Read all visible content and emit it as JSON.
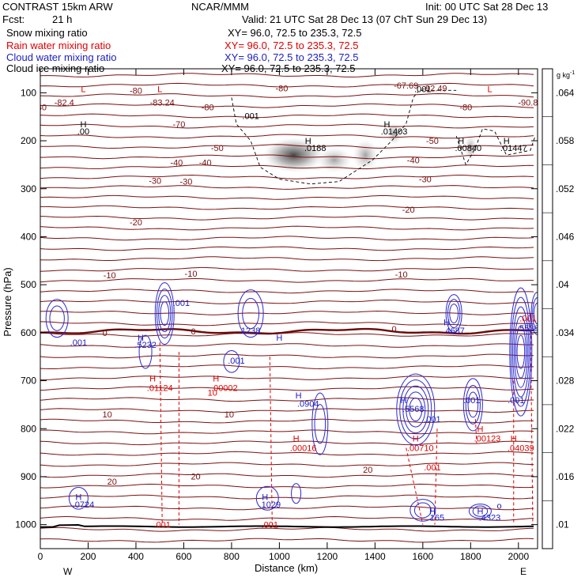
{
  "header": {
    "model": "CONTRAST 15km ARW",
    "org": "NCAR/MMM",
    "init": "Init: 00 UTC Sat 28 Dec 13",
    "fcst_label": "Fcst:",
    "fcst_value": "21 h",
    "valid": "Valid: 21 UTC Sat 28 Dec 13 (07 ChT Sun 29 Dec 13)"
  },
  "fields": [
    {
      "name": "Snow mixing ratio",
      "xy": "XY=  96.0, 72.5 to 235.3, 72.5",
      "color": "#000000"
    },
    {
      "name": "Rain water mixing ratio",
      "xy": "XY=  96.0, 72.5 to 235.3, 72.5",
      "color": "#e00000"
    },
    {
      "name": "Cloud water mixing ratio",
      "xy": "XY=  96.0, 72.5 to 235.3, 72.5",
      "color": "#2020c0"
    },
    {
      "name": "Cloud ice mixing ratio",
      "xy": "XY=  96.0, 72.5 to 235.3, 72.5",
      "color": "#000000"
    }
  ],
  "colorbar": {
    "unit": "g kg",
    "unit_exp": "-1",
    "ticks": [
      ".064",
      ".058",
      ".052",
      ".046",
      ".04",
      ".034",
      ".028",
      ".022",
      ".016",
      ".01"
    ],
    "colors": [
      "#404040",
      "#585858",
      "#6e6e6e",
      "#848484",
      "#9a9a9a",
      "#b0b0b0",
      "#c4c4c4",
      "#d6d6d6",
      "#e6e6e6",
      "#f2f2f2"
    ]
  },
  "chart_data": {
    "type": "contour",
    "xlabel": "Distance (km)",
    "ylabel": "Pressure (hPa)",
    "xlim": [
      0,
      2080
    ],
    "ylim": [
      1050,
      50
    ],
    "xticks": [
      0,
      200,
      400,
      600,
      800,
      1000,
      1200,
      1400,
      1600,
      1800,
      2000
    ],
    "yticks": [
      100,
      200,
      300,
      400,
      500,
      600,
      700,
      800,
      900,
      1000
    ],
    "x_end_labels": {
      "left": "W",
      "right": "E"
    },
    "temperature_labels": [
      {
        "x": 100,
        "p": 120,
        "text": "-82.4"
      },
      {
        "x": 0,
        "p": 130,
        "text": "-80"
      },
      {
        "x": 400,
        "p": 95,
        "text": "-80"
      },
      {
        "x": 510,
        "p": 120,
        "text": "-83.24"
      },
      {
        "x": 700,
        "p": 130,
        "text": "-80"
      },
      {
        "x": 1010,
        "p": 90,
        "text": "-80"
      },
      {
        "x": 1530,
        "p": 85,
        "text": "-67.69"
      },
      {
        "x": 1650,
        "p": 90,
        "text": "-92.49"
      },
      {
        "x": 1780,
        "p": 130,
        "text": "-80"
      },
      {
        "x": 2040,
        "p": 120,
        "text": "-90.8"
      },
      {
        "x": 580,
        "p": 165,
        "text": "-70"
      },
      {
        "x": 740,
        "p": 215,
        "text": "-50"
      },
      {
        "x": 1640,
        "p": 200,
        "text": "-50"
      },
      {
        "x": 570,
        "p": 245,
        "text": "-40"
      },
      {
        "x": 690,
        "p": 245,
        "text": "-40"
      },
      {
        "x": 1560,
        "p": 240,
        "text": "-40"
      },
      {
        "x": 480,
        "p": 283,
        "text": "-30"
      },
      {
        "x": 610,
        "p": 285,
        "text": "-30"
      },
      {
        "x": 1610,
        "p": 280,
        "text": "-30"
      },
      {
        "x": 400,
        "p": 370,
        "text": "-20"
      },
      {
        "x": 1540,
        "p": 343,
        "text": "-20"
      },
      {
        "x": 290,
        "p": 480,
        "text": "-10"
      },
      {
        "x": 630,
        "p": 477,
        "text": "-10"
      },
      {
        "x": 1510,
        "p": 478,
        "text": "-10"
      },
      {
        "x": 270,
        "p": 600,
        "text": "0"
      },
      {
        "x": 640,
        "p": 597,
        "text": "0"
      },
      {
        "x": 1480,
        "p": 592,
        "text": "0"
      },
      {
        "x": 280,
        "p": 770,
        "text": "10"
      },
      {
        "x": 790,
        "p": 770,
        "text": "10"
      },
      {
        "x": 300,
        "p": 910,
        "text": "20"
      },
      {
        "x": 650,
        "p": 899,
        "text": "20"
      },
      {
        "x": 1370,
        "p": 885,
        "text": "20"
      }
    ],
    "snow_ice_labels": [
      {
        "x": 180,
        "p": 165,
        "text": "H",
        "color": "#000000"
      },
      {
        "x": 180,
        "p": 180,
        "text": ".00",
        "color": "#000000"
      },
      {
        "x": 880,
        "p": 148,
        "text": ".001",
        "color": "#000000"
      },
      {
        "x": 1120,
        "p": 200,
        "text": "H",
        "color": "#000000"
      },
      {
        "x": 1150,
        "p": 215,
        "text": ".0188",
        "color": "#000000"
      },
      {
        "x": 1450,
        "p": 165,
        "text": "H",
        "color": "#000000"
      },
      {
        "x": 1480,
        "p": 180,
        "text": ".01403",
        "color": "#000000"
      },
      {
        "x": 1760,
        "p": 200,
        "text": "H",
        "color": "#000000"
      },
      {
        "x": 1790,
        "p": 215,
        "text": ".00840",
        "color": "#000000"
      },
      {
        "x": 1950,
        "p": 200,
        "text": "H",
        "color": "#000000"
      },
      {
        "x": 1980,
        "p": 215,
        "text": ".01447",
        "color": "#000000"
      },
      {
        "x": 1600,
        "p": 92,
        "text": ".001",
        "color": "#000000"
      },
      {
        "x": 180,
        "p": 92,
        "text": "L",
        "color": "#e00000"
      },
      {
        "x": 500,
        "p": 92,
        "text": "L",
        "color": "#e00000"
      },
      {
        "x": 1880,
        "p": 92,
        "text": "L",
        "color": "#e00000"
      }
    ],
    "rain_labels": [
      {
        "x": 470,
        "p": 695,
        "text": "H"
      },
      {
        "x": 500,
        "p": 715,
        "text": ".01124"
      },
      {
        "x": 735,
        "p": 695,
        "text": "H"
      },
      {
        "x": 770,
        "p": 715,
        "text": ".00002"
      },
      {
        "x": 1070,
        "p": 820,
        "text": "H"
      },
      {
        "x": 1100,
        "p": 840,
        "text": ".00016"
      },
      {
        "x": 1570,
        "p": 820,
        "text": "H"
      },
      {
        "x": 1590,
        "p": 840,
        "text": ".00710"
      },
      {
        "x": 1840,
        "p": 800,
        "text": "H"
      },
      {
        "x": 1870,
        "p": 820,
        "text": ".00123"
      },
      {
        "x": 1980,
        "p": 820,
        "text": "H"
      },
      {
        "x": 2010,
        "p": 840,
        "text": ".04039"
      },
      {
        "x": 1640,
        "p": 880,
        "text": ".001"
      },
      {
        "x": 510,
        "p": 1000,
        "text": ".001"
      },
      {
        "x": 960,
        "p": 1000,
        "text": ".001"
      },
      {
        "x": 2040,
        "p": 570,
        "text": ".001"
      },
      {
        "x": 720,
        "p": 725,
        "text": "10"
      }
    ],
    "cloud_water_labels": [
      {
        "x": 420,
        "p": 610,
        "text": "H"
      },
      {
        "x": 440,
        "p": 625,
        "text": ".5232"
      },
      {
        "x": 1000,
        "p": 610,
        "text": "H"
      },
      {
        "x": 875,
        "p": 595,
        "text": ".1238"
      },
      {
        "x": 160,
        "p": 620,
        "text": ".001"
      },
      {
        "x": 590,
        "p": 538,
        "text": ".001"
      },
      {
        "x": 820,
        "p": 658,
        "text": ".001"
      },
      {
        "x": 1080,
        "p": 730,
        "text": "H"
      },
      {
        "x": 1120,
        "p": 748,
        "text": ".0904"
      },
      {
        "x": 1520,
        "p": 740,
        "text": "H"
      },
      {
        "x": 1560,
        "p": 758,
        "text": ".5568"
      },
      {
        "x": 1700,
        "p": 578,
        "text": "H"
      },
      {
        "x": 1730,
        "p": 595,
        "text": ".4687"
      },
      {
        "x": 1640,
        "p": 780,
        "text": ".001"
      },
      {
        "x": 1805,
        "p": 740,
        "text": ".001"
      },
      {
        "x": 1990,
        "p": 740,
        "text": ".001"
      },
      {
        "x": 2040,
        "p": 590,
        "text": ".5536"
      },
      {
        "x": 160,
        "p": 942,
        "text": "H"
      },
      {
        "x": 180,
        "p": 958,
        "text": ".0724"
      },
      {
        "x": 940,
        "p": 942,
        "text": "H"
      },
      {
        "x": 960,
        "p": 958,
        "text": ".1029"
      },
      {
        "x": 1640,
        "p": 972,
        "text": "H"
      },
      {
        "x": 1660,
        "p": 985,
        "text": "165"
      },
      {
        "x": 1840,
        "p": 972,
        "text": "H"
      },
      {
        "x": 1880,
        "p": 985,
        "text": ".4323"
      },
      {
        "x": 1920,
        "p": 960,
        "text": "o"
      }
    ]
  }
}
